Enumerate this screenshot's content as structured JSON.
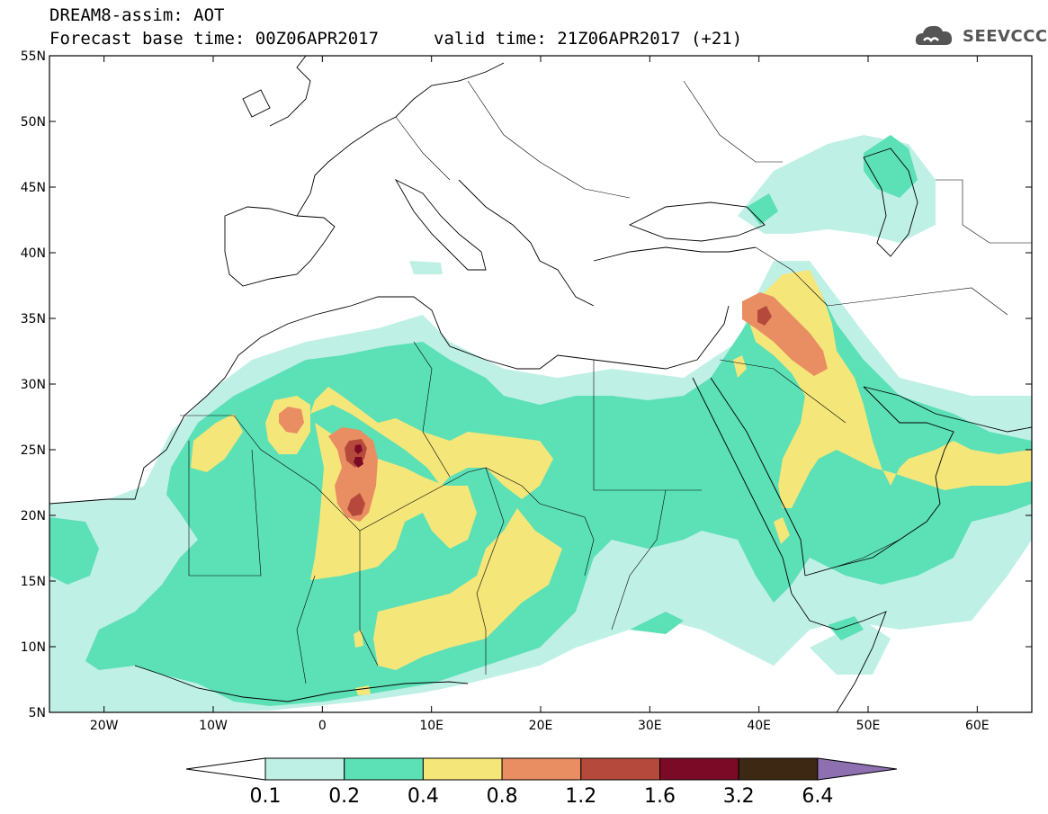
{
  "header": {
    "title_line1": "DREAM8-assim: AOT",
    "title_line2": "Forecast base time: 00Z06APR2017",
    "valid_time": "valid time: 21Z06APR2017 (+21)"
  },
  "logo": {
    "text": "SEEVCCC",
    "icon": "cloud-icon"
  },
  "map": {
    "lon_range": [
      -25,
      65
    ],
    "lat_range": [
      5,
      55
    ],
    "lat_ticks": [
      {
        "v": 55,
        "label": "55N"
      },
      {
        "v": 50,
        "label": "50N"
      },
      {
        "v": 45,
        "label": "45N"
      },
      {
        "v": 40,
        "label": "40N"
      },
      {
        "v": 35,
        "label": "35N"
      },
      {
        "v": 30,
        "label": "30N"
      },
      {
        "v": 25,
        "label": "25N"
      },
      {
        "v": 20,
        "label": "20N"
      },
      {
        "v": 15,
        "label": "15N"
      },
      {
        "v": 10,
        "label": "10N"
      },
      {
        "v": 5,
        "label": "5N"
      }
    ],
    "lon_ticks": [
      {
        "v": -20,
        "label": "20W"
      },
      {
        "v": -10,
        "label": "10W"
      },
      {
        "v": 0,
        "label": "0"
      },
      {
        "v": 10,
        "label": "10E"
      },
      {
        "v": 20,
        "label": "20E"
      },
      {
        "v": 30,
        "label": "30E"
      },
      {
        "v": 40,
        "label": "40E"
      },
      {
        "v": 50,
        "label": "50E"
      },
      {
        "v": 60,
        "label": "60E"
      }
    ]
  },
  "colorbar": {
    "low_color": "#ffffff",
    "high_color": "#8e6fb0",
    "bins": [
      {
        "color": "#bff0e6"
      },
      {
        "color": "#5ce0b5"
      },
      {
        "color": "#f5e67a"
      },
      {
        "color": "#e98d62"
      },
      {
        "color": "#b54a3c"
      },
      {
        "color": "#7a0a25"
      },
      {
        "color": "#3d2813"
      }
    ],
    "labels": [
      "0.1",
      "0.2",
      "0.4",
      "0.8",
      "1.2",
      "1.6",
      "3.2",
      "6.4"
    ]
  },
  "colors": {
    "c01": "#bff0e6",
    "c02": "#5ce0b5",
    "c04": "#f5e67a",
    "c08": "#e98d62",
    "c12": "#b54a3c",
    "c16": "#7a0a25"
  }
}
